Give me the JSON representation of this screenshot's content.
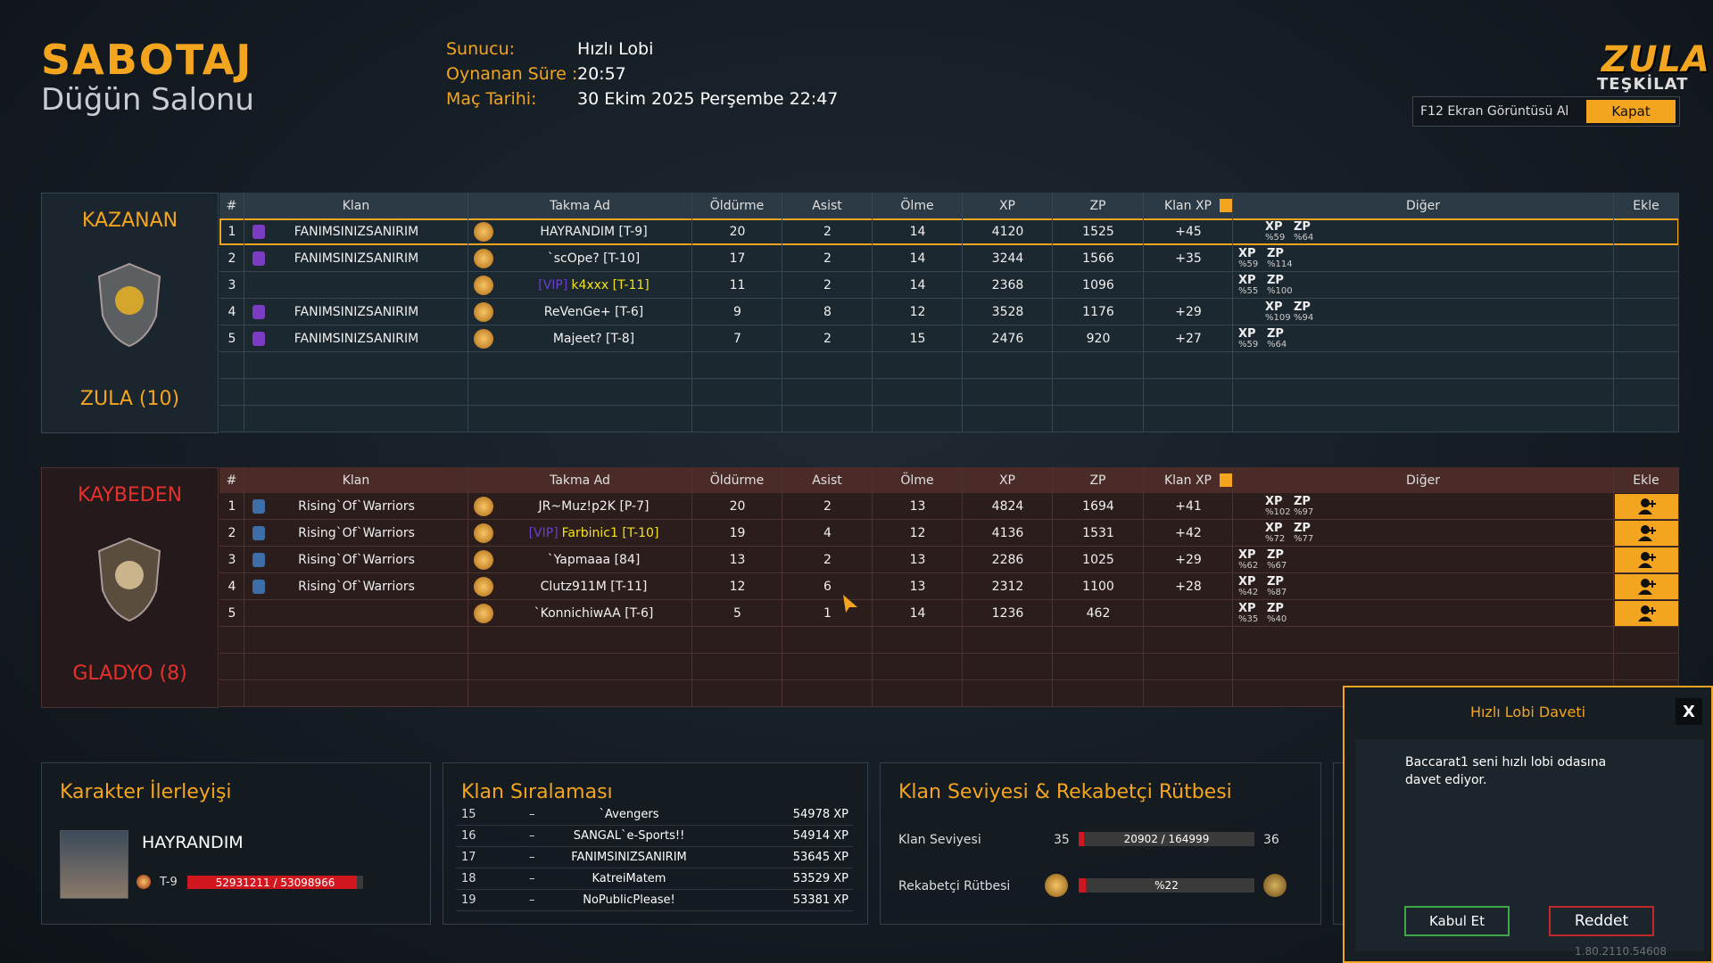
{
  "header": {
    "title": "SABOTAJ",
    "subtitle": "Düğün Salonu"
  },
  "match_info": [
    {
      "label": "Sunucu:",
      "value": "Hızlı Lobi"
    },
    {
      "label": "Oynanan Süre :",
      "value": "20:57"
    },
    {
      "label": "Maç Tarihi:",
      "value": "30 Ekim 2025 Perşembe 22:47"
    }
  ],
  "logo": {
    "line1": "ZULA",
    "line2": "TEŞKİLAT"
  },
  "screenshot_button": "F12 Ekran Görüntüsü Al",
  "close_button": "Kapat",
  "columns": [
    "#",
    "Klan",
    "Takma Ad",
    "Öldürme",
    "Asist",
    "Ölme",
    "XP",
    "ZP",
    "Klan XP",
    "Diğer",
    "Ekle"
  ],
  "other_labels": [
    "XP",
    "ZP"
  ],
  "teams": [
    {
      "result": "KAZANAN",
      "name": "ZULA (10)",
      "rows": [
        {
          "rank": "1",
          "clan": "FANIMSINIZSANIRIM",
          "nick": "HAYRANDIM [T-9]",
          "kills": "20",
          "assists": "2",
          "deaths": "14",
          "xp": "4120",
          "zp": "1525",
          "clan_xp": "+45",
          "xp_bonus": "%59",
          "zp_bonus": "%64"
        },
        {
          "rank": "2",
          "clan": "FANIMSINIZSANIRIM",
          "nick": "`scOpe? [T-10]",
          "kills": "17",
          "assists": "2",
          "deaths": "14",
          "xp": "3244",
          "zp": "1566",
          "clan_xp": "+35",
          "xp_bonus": "%59",
          "zp_bonus": "%114"
        },
        {
          "rank": "3",
          "vip": "[VIP]",
          "nick": "k4xxx [T-11]",
          "kills": "11",
          "assists": "2",
          "deaths": "14",
          "xp": "2368",
          "zp": "1096",
          "xp_bonus": "%55",
          "zp_bonus": "%100"
        },
        {
          "rank": "4",
          "clan": "FANIMSINIZSANIRIM",
          "nick": "ReVenGe+ [T-6]",
          "kills": "9",
          "assists": "8",
          "deaths": "12",
          "xp": "3528",
          "zp": "1176",
          "clan_xp": "+29",
          "xp_bonus": "%109",
          "zp_bonus": "%94"
        },
        {
          "rank": "5",
          "clan": "FANIMSINIZSANIRIM",
          "nick": "Majeet? [T-8]",
          "kills": "7",
          "assists": "2",
          "deaths": "15",
          "xp": "2476",
          "zp": "920",
          "clan_xp": "+27",
          "xp_bonus": "%59",
          "zp_bonus": "%64"
        }
      ]
    },
    {
      "result": "KAYBEDEN",
      "name": "GLADYO (8)",
      "rows": [
        {
          "rank": "1",
          "clan": "Rising`Of`Warriors",
          "nick": "JR~Muz!p2K [P-7]",
          "kills": "20",
          "assists": "2",
          "deaths": "13",
          "xp": "4824",
          "zp": "1694",
          "clan_xp": "+41",
          "xp_bonus": "%102",
          "zp_bonus": "%97"
        },
        {
          "rank": "2",
          "clan": "Rising`Of`Warriors",
          "vip": "[VIP]",
          "nick": "Farbinic1 [T-10]",
          "kills": "19",
          "assists": "4",
          "deaths": "12",
          "xp": "4136",
          "zp": "1531",
          "clan_xp": "+42",
          "xp_bonus": "%72",
          "zp_bonus": "%77"
        },
        {
          "rank": "3",
          "clan": "Rising`Of`Warriors",
          "nick": "`Yapmaaa [84]",
          "kills": "13",
          "assists": "2",
          "deaths": "13",
          "xp": "2286",
          "zp": "1025",
          "clan_xp": "+29",
          "xp_bonus": "%62",
          "zp_bonus": "%67"
        },
        {
          "rank": "4",
          "clan": "Rising`Of`Warriors",
          "nick": "Clutz911M [T-11]",
          "kills": "12",
          "assists": "6",
          "deaths": "13",
          "xp": "2312",
          "zp": "1100",
          "clan_xp": "+28",
          "xp_bonus": "%42",
          "zp_bonus": "%87"
        },
        {
          "rank": "5",
          "nick": "`KonnichiwAA [T-6]",
          "kills": "5",
          "assists": "1",
          "deaths": "14",
          "xp": "1236",
          "zp": "462",
          "xp_bonus": "%35",
          "zp_bonus": "%40"
        }
      ]
    }
  ],
  "character": {
    "title": "Karakter İlerleyişi",
    "name": "HAYRANDIM",
    "rank": "T-9",
    "progress": "52931211 / 53098966"
  },
  "clan_ranking": {
    "title": "Klan Sıralaması",
    "rows": [
      {
        "rank": "15",
        "change": "–",
        "name": "`Avengers",
        "xp": "54978 XP"
      },
      {
        "rank": "16",
        "change": "–",
        "name": "SANGAL`e-Sports!!",
        "xp": "54914 XP"
      },
      {
        "rank": "17",
        "change": "–",
        "name": "FANIMSINIZSANIRIM",
        "xp": "53645 XP"
      },
      {
        "rank": "18",
        "change": "–",
        "name": "KatreiMatem",
        "xp": "53529 XP"
      },
      {
        "rank": "19",
        "change": "–",
        "name": "NoPublicPlease!",
        "xp": "53381 XP"
      }
    ]
  },
  "clan_level": {
    "title": "Klan Seviyesi & Rekabetçi Rütbesi",
    "level_label": "Klan Seviyesi",
    "level_from": "35",
    "level_progress": "20902 / 164999",
    "level_to": "36",
    "competitive_label": "Rekabetçi Rütbesi",
    "competitive_progress": "%22"
  },
  "invite": {
    "title": "Hızlı Lobi Daveti",
    "close": "X",
    "message": "Baccarat1 seni hızlı lobi odasına davet ediyor.",
    "accept": "Kabul Et",
    "reject": "Reddet"
  },
  "version": "1.80.2110.54608"
}
